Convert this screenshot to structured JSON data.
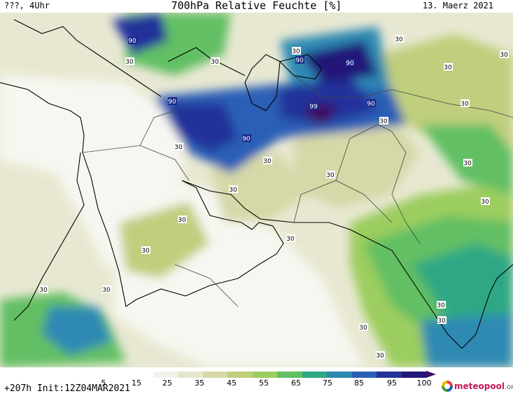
{
  "header": {
    "left": "???, 4Uhr",
    "title": "700hPa Relative Feuchte [%]",
    "date": "13. Maerz 2021"
  },
  "footer": {
    "run_info": "+207h  Init:12Z04MAR2021",
    "brand_name": "meteopool",
    "brand_tld": ".org"
  },
  "legend": {
    "ticks": [
      "5",
      "15",
      "25",
      "35",
      "45",
      "55",
      "65",
      "75",
      "85",
      "95",
      "100"
    ],
    "colors": [
      "#ffffff",
      "#f2f2ed",
      "#e6e6cf",
      "#d6d8a8",
      "#bfcf7d",
      "#9ccd5f",
      "#62bf63",
      "#2fa884",
      "#2d8ab3",
      "#2a5fb6",
      "#24329a",
      "#241679",
      "#3d0a63"
    ]
  },
  "map": {
    "contour_labels": [
      {
        "name": "contour-label-90-balkans",
        "text": "90"
      },
      {
        "name": "contour-label-90-caspian",
        "text": "90"
      },
      {
        "name": "contour-label-90-turkey",
        "text": "90"
      },
      {
        "name": "contour-label-99-iran",
        "text": "99"
      },
      {
        "name": "contour-label-90-tajik",
        "text": "90"
      },
      {
        "name": "contour-label-90-central-asia",
        "text": "90"
      },
      {
        "name": "contour-label-90-iraq",
        "text": "90"
      },
      {
        "name": "contour-label-30-1",
        "text": "30"
      },
      {
        "name": "contour-label-30-2",
        "text": "30"
      },
      {
        "name": "contour-label-30-3",
        "text": "30"
      },
      {
        "name": "contour-label-30-4",
        "text": "30"
      },
      {
        "name": "contour-label-30-5",
        "text": "30"
      },
      {
        "name": "contour-label-30-6",
        "text": "30"
      },
      {
        "name": "contour-label-30-7",
        "text": "30"
      },
      {
        "name": "contour-label-30-8",
        "text": "30"
      },
      {
        "name": "contour-label-30-9",
        "text": "30"
      },
      {
        "name": "contour-label-30-10",
        "text": "30"
      },
      {
        "name": "contour-label-30-11",
        "text": "30"
      },
      {
        "name": "contour-label-30-12",
        "text": "30"
      },
      {
        "name": "contour-label-30-13",
        "text": "30"
      },
      {
        "name": "contour-label-30-14",
        "text": "30"
      },
      {
        "name": "contour-label-30-15",
        "text": "30"
      },
      {
        "name": "contour-label-30-16",
        "text": "30"
      },
      {
        "name": "contour-label-30-17",
        "text": "30"
      },
      {
        "name": "contour-label-30-18",
        "text": "30"
      },
      {
        "name": "contour-label-30-19",
        "text": "30"
      },
      {
        "name": "contour-label-30-20",
        "text": "30"
      },
      {
        "name": "contour-label-30-21",
        "text": "30"
      },
      {
        "name": "contour-label-30-22",
        "text": "30"
      },
      {
        "name": "contour-label-30-23",
        "text": "30"
      }
    ]
  }
}
